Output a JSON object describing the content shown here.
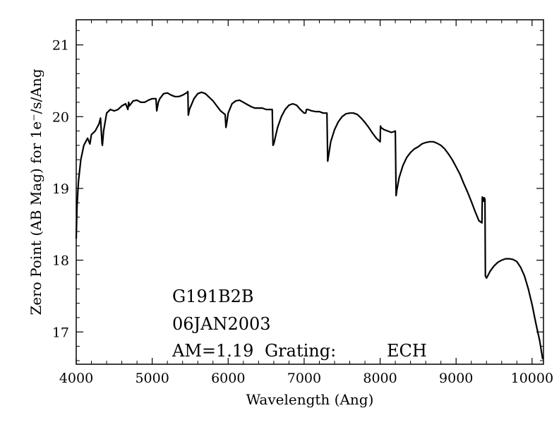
{
  "chart_data": {
    "type": "line",
    "title": "",
    "xlabel": "Wavelength (Ang)",
    "ylabel": "Zero Point (AB Mag) for 1e⁻/s/Ang",
    "xlim": [
      4000,
      10150
    ],
    "ylim": [
      16.55,
      21.35
    ],
    "x_ticks": [
      4000,
      5000,
      6000,
      7000,
      8000,
      9000,
      10000
    ],
    "y_ticks": [
      17,
      18,
      19,
      20,
      21
    ],
    "x_tick_labels": [
      "4000",
      "5000",
      "6000",
      "7000",
      "8000",
      "9000",
      "10000"
    ],
    "y_tick_labels": [
      "17",
      "18",
      "19",
      "20",
      "21"
    ],
    "grid": false,
    "legend": "none",
    "line_color": "#000000",
    "annotations": {
      "target": "G191B2B",
      "date": "06JAN2003",
      "airmass": "AM=1.19",
      "grating_label": "Grating:",
      "grating_value": "ECH"
    },
    "series": [
      {
        "x": [
          4000,
          4010,
          4030,
          4060,
          4100,
          4150,
          4180,
          4200,
          4250,
          4300,
          4320,
          4340,
          4345,
          4360,
          4400,
          4450,
          4500,
          4550,
          4600,
          4650,
          4680,
          4690,
          4700,
          4750,
          4800,
          4850,
          4900,
          4950,
          5000,
          5050,
          5060,
          5080,
          5100,
          5150,
          5200,
          5250,
          5300,
          5350,
          5400,
          5450,
          5470,
          5475,
          5490,
          5550,
          5600,
          5650,
          5700,
          5750,
          5800,
          5850,
          5900,
          5960,
          5970,
          5980,
          6000,
          6050,
          6100,
          6150,
          6200,
          6250,
          6300,
          6350,
          6400,
          6450,
          6500,
          6550,
          6580,
          6590,
          6600,
          6650,
          6700,
          6750,
          6800,
          6850,
          6900,
          6950,
          7000,
          7020,
          7030,
          7050,
          7100,
          7150,
          7200,
          7250,
          7300,
          7310,
          7320,
          7350,
          7400,
          7450,
          7500,
          7550,
          7600,
          7650,
          7700,
          7750,
          7800,
          7850,
          7900,
          7950,
          8000,
          8005,
          8010,
          8050,
          8100,
          8150,
          8200,
          8210,
          8220,
          8250,
          8300,
          8350,
          8400,
          8450,
          8500,
          8550,
          8600,
          8650,
          8700,
          8750,
          8800,
          8850,
          8900,
          8950,
          9000,
          9050,
          9100,
          9150,
          9200,
          9250,
          9300,
          9340,
          9345,
          9360,
          9365,
          9370,
          9380,
          9385,
          9400,
          9450,
          9500,
          9550,
          9600,
          9650,
          9700,
          9750,
          9800,
          9850,
          9900,
          9950,
          10000,
          10050,
          10100,
          10140
        ],
        "y": [
          18.3,
          18.75,
          19.1,
          19.4,
          19.6,
          19.7,
          19.62,
          19.75,
          19.8,
          19.9,
          19.98,
          19.62,
          19.6,
          19.8,
          20.05,
          20.1,
          20.08,
          20.1,
          20.15,
          20.18,
          20.1,
          20.2,
          20.15,
          20.22,
          20.23,
          20.2,
          20.2,
          20.23,
          20.25,
          20.25,
          20.08,
          20.2,
          20.25,
          20.32,
          20.33,
          20.3,
          20.28,
          20.28,
          20.3,
          20.33,
          20.35,
          20.02,
          20.1,
          20.25,
          20.32,
          20.34,
          20.32,
          20.27,
          20.22,
          20.15,
          20.08,
          20.03,
          19.85,
          19.9,
          20.05,
          20.18,
          20.22,
          20.23,
          20.2,
          20.17,
          20.14,
          20.12,
          20.12,
          20.12,
          20.1,
          20.1,
          20.1,
          19.6,
          19.62,
          19.85,
          20.0,
          20.1,
          20.16,
          20.18,
          20.16,
          20.1,
          20.05,
          20.05,
          20.1,
          20.1,
          20.08,
          20.07,
          20.07,
          20.05,
          20.05,
          19.38,
          19.45,
          19.65,
          19.82,
          19.93,
          20.0,
          20.04,
          20.05,
          20.05,
          20.03,
          19.98,
          19.92,
          19.85,
          19.77,
          19.7,
          19.65,
          19.87,
          19.85,
          19.82,
          19.8,
          19.78,
          19.8,
          18.9,
          18.98,
          19.15,
          19.32,
          19.43,
          19.5,
          19.55,
          19.58,
          19.62,
          19.64,
          19.65,
          19.65,
          19.63,
          19.6,
          19.55,
          19.48,
          19.4,
          19.3,
          19.2,
          19.07,
          18.95,
          18.82,
          18.68,
          18.55,
          18.52,
          18.88,
          18.85,
          18.82,
          18.87,
          18.85,
          17.78,
          17.75,
          17.85,
          17.92,
          17.97,
          18.0,
          18.02,
          18.02,
          18.01,
          17.98,
          17.9,
          17.78,
          17.6,
          17.38,
          17.12,
          16.88,
          16.62
        ]
      }
    ]
  }
}
